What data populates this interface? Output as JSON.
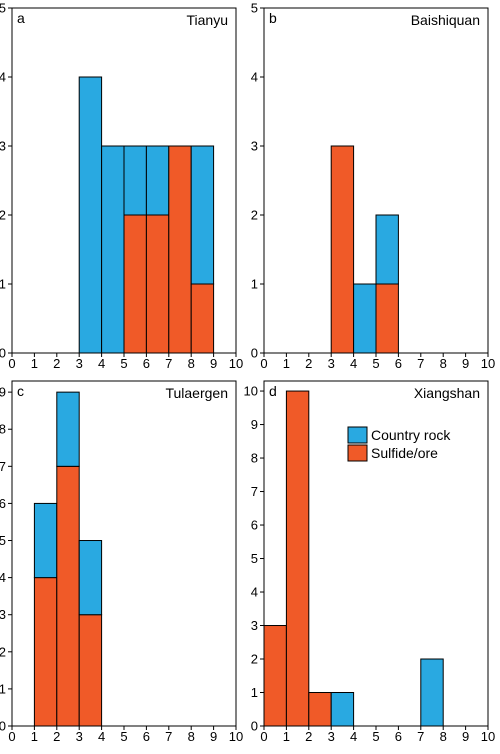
{
  "colors": {
    "country_rock": "#29A9E1",
    "sulfide_ore": "#F05A28",
    "outline": "#000000"
  },
  "legend": {
    "placement": "top-right of panel d",
    "items": [
      "Country rock",
      "Sulfide/ore"
    ]
  },
  "chart_data": [
    {
      "type": "bar",
      "panel": "a",
      "title": "Tianyu",
      "xlim": [
        0,
        10
      ],
      "ylim": [
        0,
        5
      ],
      "xticks": [
        0,
        1,
        2,
        3,
        4,
        5,
        6,
        7,
        8,
        9,
        10
      ],
      "yticks": [
        0,
        1,
        2,
        3,
        4,
        5
      ],
      "stacked": true,
      "bins": [
        {
          "x0": 3,
          "x1": 4,
          "sulfide": 0,
          "country": 4
        },
        {
          "x0": 4,
          "x1": 5,
          "sulfide": 0,
          "country": 3
        },
        {
          "x0": 5,
          "x1": 6,
          "sulfide": 2,
          "country": 1
        },
        {
          "x0": 6,
          "x1": 7,
          "sulfide": 2,
          "country": 1
        },
        {
          "x0": 7,
          "x1": 8,
          "sulfide": 3,
          "country": 0
        },
        {
          "x0": 8,
          "x1": 9,
          "sulfide": 1,
          "country": 2
        }
      ]
    },
    {
      "type": "bar",
      "panel": "b",
      "title": "Baishiquan",
      "xlim": [
        0,
        10
      ],
      "ylim": [
        0,
        5
      ],
      "xticks": [
        0,
        1,
        2,
        3,
        4,
        5,
        6,
        7,
        8,
        9,
        10
      ],
      "yticks": [
        0,
        1,
        2,
        3,
        4,
        5
      ],
      "stacked": true,
      "bins": [
        {
          "x0": 3,
          "x1": 4,
          "sulfide": 3,
          "country": 0
        },
        {
          "x0": 4,
          "x1": 5,
          "sulfide": 0,
          "country": 1
        },
        {
          "x0": 5,
          "x1": 6,
          "sulfide": 1,
          "country": 1
        }
      ]
    },
    {
      "type": "bar",
      "panel": "c",
      "title": "Tulaergen",
      "xlim": [
        0,
        10
      ],
      "ylim": [
        0,
        9.3
      ],
      "xticks": [
        0,
        1,
        2,
        3,
        4,
        5,
        6,
        7,
        8,
        9,
        10
      ],
      "yticks": [
        0,
        1,
        2,
        3,
        4,
        5,
        6,
        7,
        8,
        9
      ],
      "stacked": true,
      "bins": [
        {
          "x0": 1,
          "x1": 2,
          "sulfide": 4,
          "country": 2
        },
        {
          "x0": 2,
          "x1": 3,
          "sulfide": 7,
          "country": 2
        },
        {
          "x0": 3,
          "x1": 4,
          "sulfide": 3,
          "country": 2
        }
      ]
    },
    {
      "type": "bar",
      "panel": "d",
      "title": "Xiangshan",
      "xlim": [
        0,
        10
      ],
      "ylim": [
        0,
        10.3
      ],
      "xticks": [
        0,
        1,
        2,
        3,
        4,
        5,
        6,
        7,
        8,
        9,
        10
      ],
      "yticks": [
        0,
        1,
        2,
        3,
        4,
        5,
        6,
        7,
        8,
        9,
        10
      ],
      "stacked": true,
      "bins": [
        {
          "x0": 0,
          "x1": 1,
          "sulfide": 3,
          "country": 0
        },
        {
          "x0": 1,
          "x1": 2,
          "sulfide": 10,
          "country": 0
        },
        {
          "x0": 2,
          "x1": 3,
          "sulfide": 1,
          "country": 0
        },
        {
          "x0": 3,
          "x1": 4,
          "sulfide": 0,
          "country": 1
        },
        {
          "x0": 7,
          "x1": 8,
          "sulfide": 0,
          "country": 2
        }
      ]
    }
  ]
}
